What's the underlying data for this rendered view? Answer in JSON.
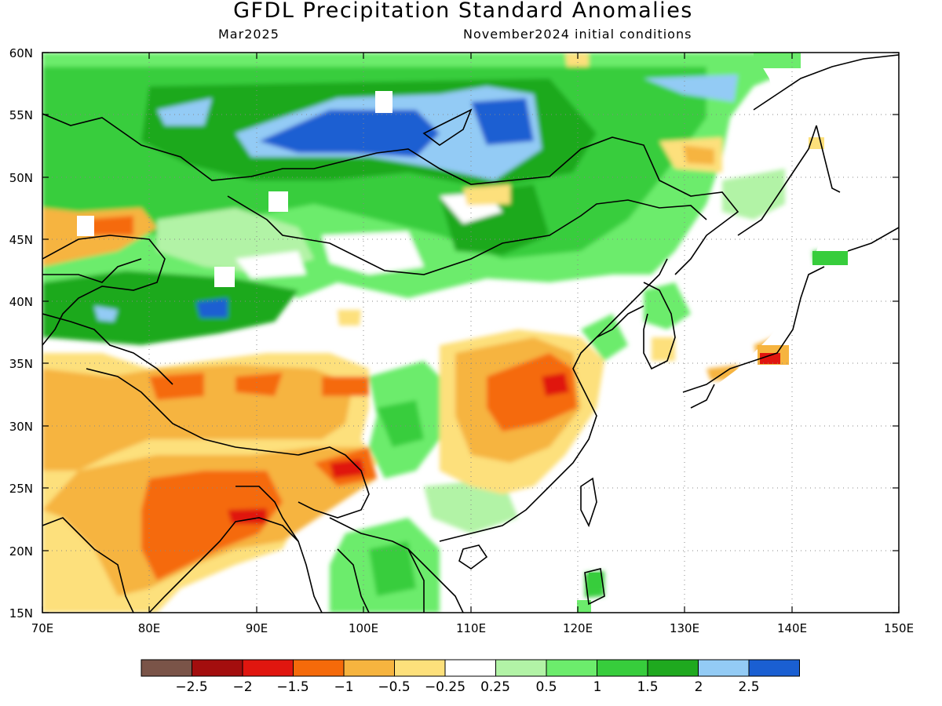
{
  "title": "GFDL Precipitation Standard Anomalies",
  "valid_month": "Mar2025",
  "initial_conditions": "November2024 initial conditions",
  "map": {
    "lat_labels": [
      "60N",
      "55N",
      "50N",
      "45N",
      "40N",
      "35N",
      "30N",
      "25N",
      "20N",
      "15N"
    ],
    "lon_labels": [
      "70E",
      "80E",
      "90E",
      "100E",
      "110E",
      "120E",
      "130E",
      "140E",
      "150E"
    ],
    "lat_range": [
      15,
      60
    ],
    "lon_range": [
      70,
      150
    ],
    "grid": "dotted"
  },
  "colorbar": {
    "labels": [
      "−2.5",
      "−2",
      "−1.5",
      "−1",
      "−0.5",
      "−0.25",
      "0.25",
      "0.5",
      "1",
      "1.5",
      "2",
      "2.5"
    ],
    "colors": [
      "#7a5448",
      "#a30e0e",
      "#e0160f",
      "#f56a0a",
      "#f6b43f",
      "#fde07b",
      "#ffffff",
      "#b2f3a6",
      "#6cec6c",
      "#37cd3c",
      "#1fa91f",
      "#93cbf5",
      "#1a5fd2"
    ]
  },
  "legend_colors": {
    "dry_strong": "#e0160f",
    "dry_moderate": "#f56a0a",
    "dry_light": "#f6b43f",
    "dry_slight": "#fde07b",
    "wet_slight": "#b2f3a6",
    "wet_light": "#6cec6c",
    "wet_moderate": "#37cd3c",
    "wet_strong": "#1fa91f",
    "very_wet": "#93cbf5",
    "extreme_wet": "#1a5fd2"
  }
}
